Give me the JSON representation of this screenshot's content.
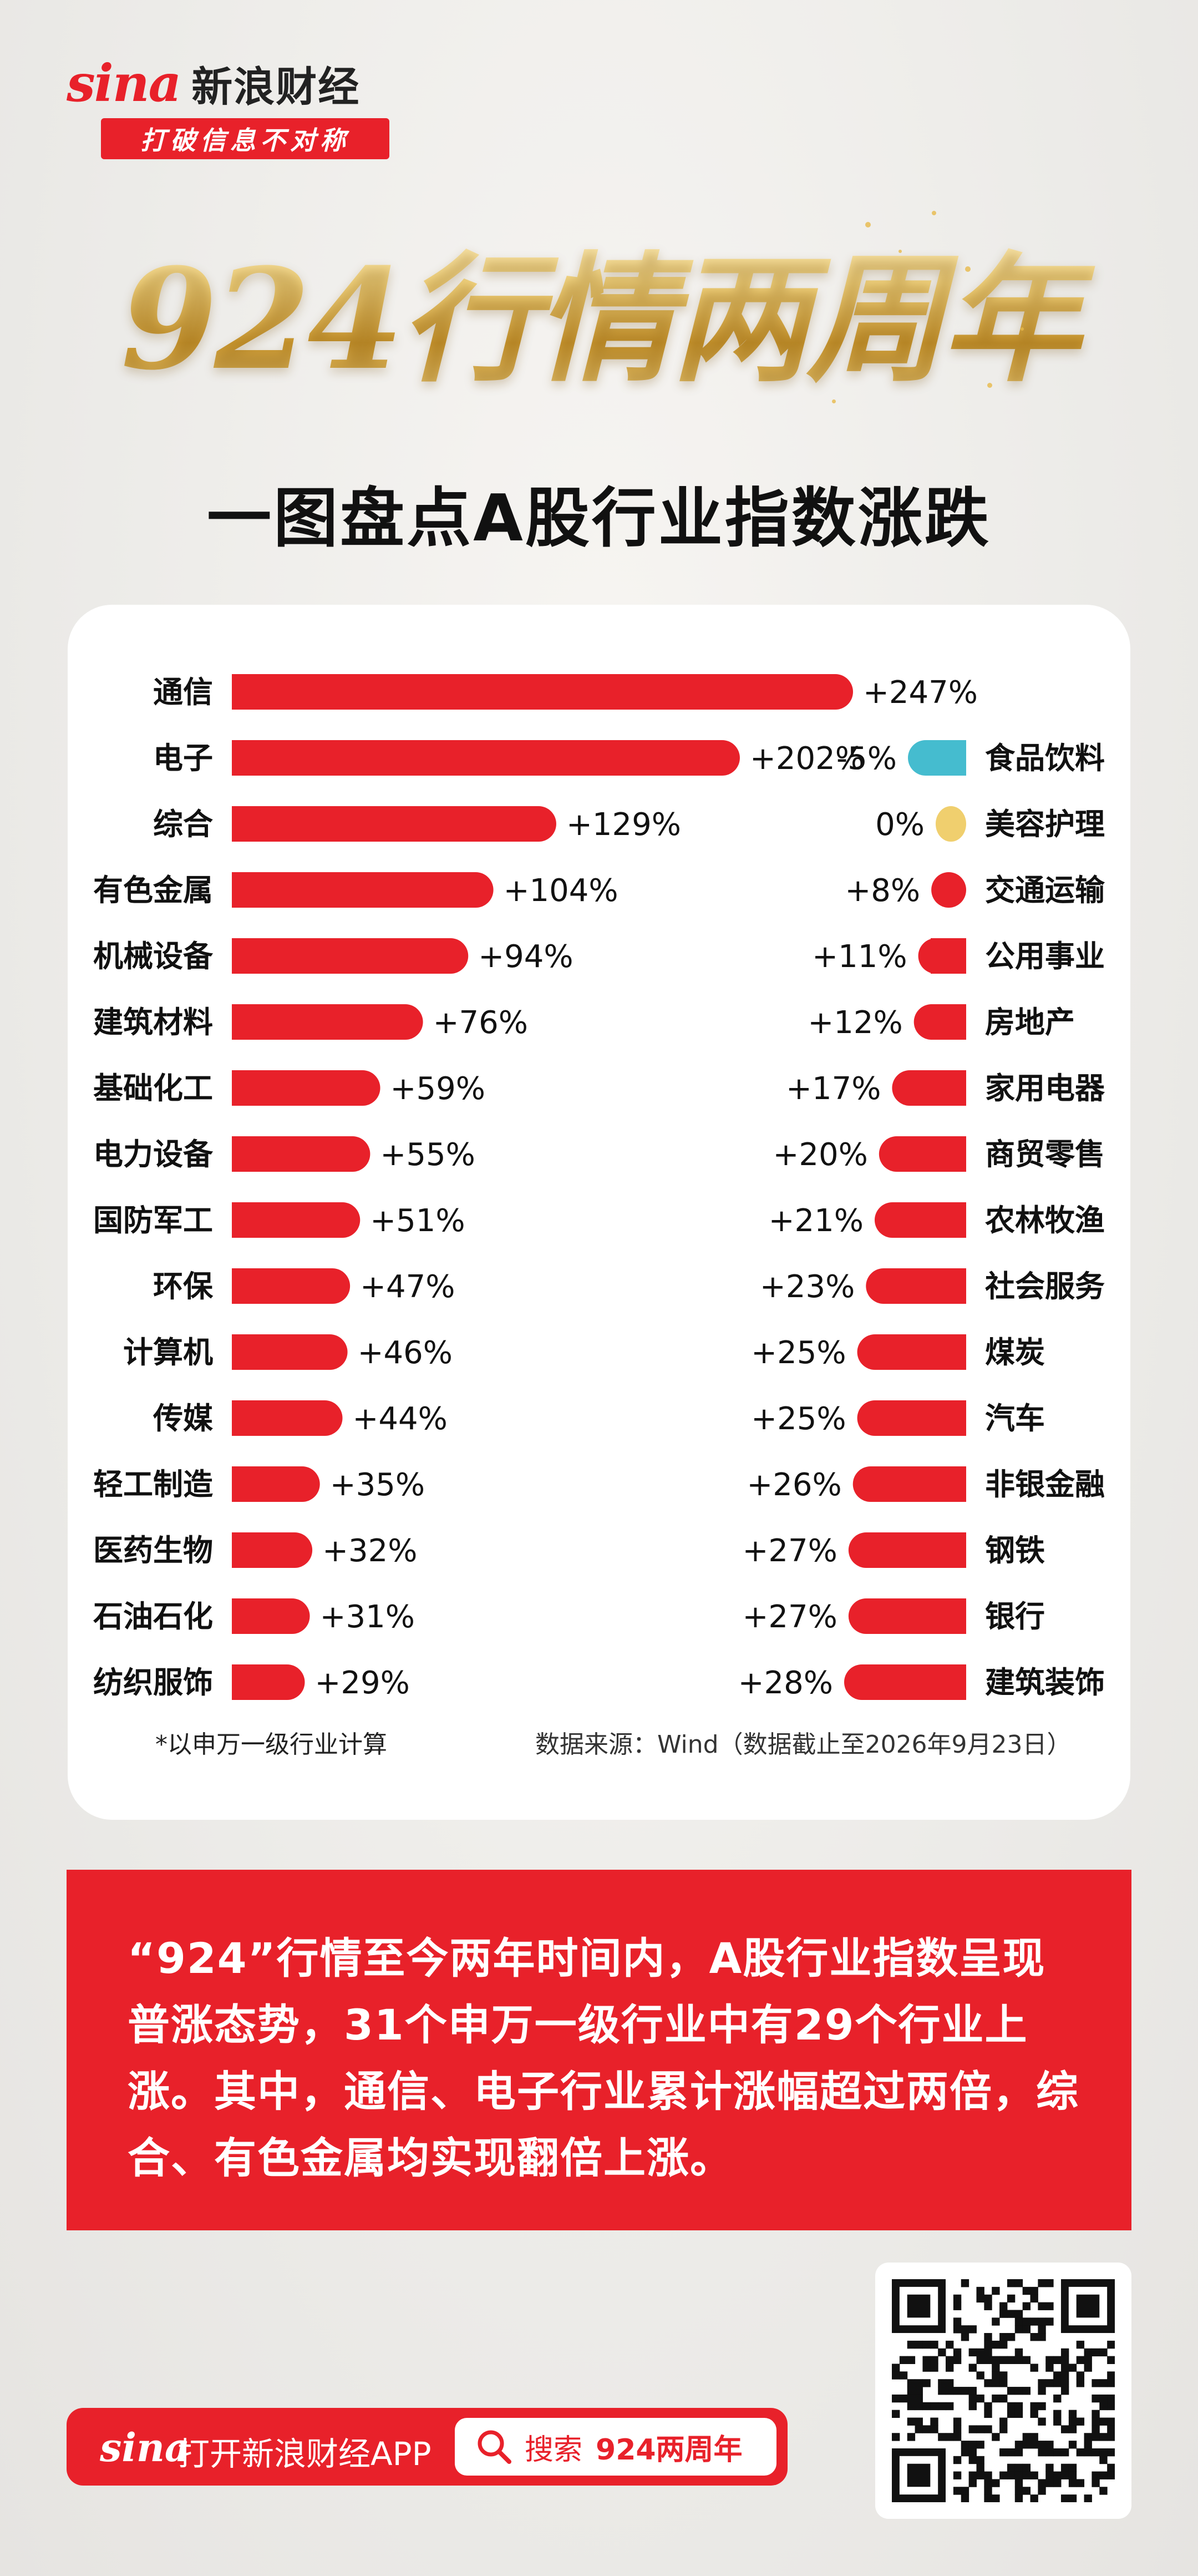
{
  "brand": {
    "logo_text": "sina",
    "name": "新浪财经",
    "slogan": "打破信息不对称"
  },
  "hero": {
    "title": "924行情两周年"
  },
  "subtitle": "一图盘点A股行业指数涨跌",
  "colors": {
    "brand_red": "#e8212a",
    "bar_red": "#e8212a",
    "negative": "#45bccf",
    "zero": "#f0cf6e",
    "gold": "#d7a640"
  },
  "chart_data": {
    "type": "bar",
    "orientation": "horizontal",
    "unit": "%",
    "left_group": {
      "categories": [
        "通信",
        "电子",
        "综合",
        "有色金属",
        "机械设备",
        "建筑材料",
        "基础化工",
        "电力设备",
        "国防军工",
        "环保",
        "计算机",
        "传媒",
        "轻工制造",
        "医药生物",
        "石油石化",
        "纺织服饰"
      ],
      "values": [
        247,
        202,
        129,
        104,
        94,
        76,
        59,
        55,
        51,
        47,
        46,
        44,
        35,
        32,
        31,
        29
      ],
      "labels": [
        "+247%",
        "+202%",
        "+129%",
        "+104%",
        "+94%",
        "+76%",
        "+59%",
        "+55%",
        "+51%",
        "+47%",
        "+46%",
        "+44%",
        "+35%",
        "+32%",
        "+31%",
        "+29%"
      ]
    },
    "right_group": {
      "categories": [
        "食品饮料",
        "美容护理",
        "交通运输",
        "公用事业",
        "房地产",
        "家用电器",
        "商贸零售",
        "农林牧渔",
        "社会服务",
        "煤炭",
        "汽车",
        "非银金融",
        "钢铁",
        "银行",
        "建筑装饰"
      ],
      "values": [
        -5,
        0,
        8,
        11,
        12,
        17,
        20,
        21,
        23,
        25,
        25,
        26,
        27,
        27,
        28
      ],
      "labels": [
        "-5%",
        "0%",
        "+8%",
        "+11%",
        "+12%",
        "+17%",
        "+20%",
        "+21%",
        "+23%",
        "+25%",
        "+25%",
        "+26%",
        "+27%",
        "+27%",
        "+28%"
      ]
    }
  },
  "notes": {
    "left": "*以申万一级行业计算",
    "right": "数据来源：Wind（数据截止至2026年9月23日）"
  },
  "summary": "“924”行情至今两年时间内，A股行业指数呈现普涨态势，31个申万一级行业中有29个行业上涨。其中，通信、电子行业累计涨幅超过两倍，综合、有色金属均实现翻倍上涨。",
  "footer": {
    "logo": "sina",
    "open_app": "打开新浪财经APP",
    "search_label": "搜索",
    "search_term": "924两周年"
  },
  "icons": {
    "search": "search-icon",
    "qr": "qr-code-icon",
    "logo_eye": "sina-eye-icon"
  }
}
